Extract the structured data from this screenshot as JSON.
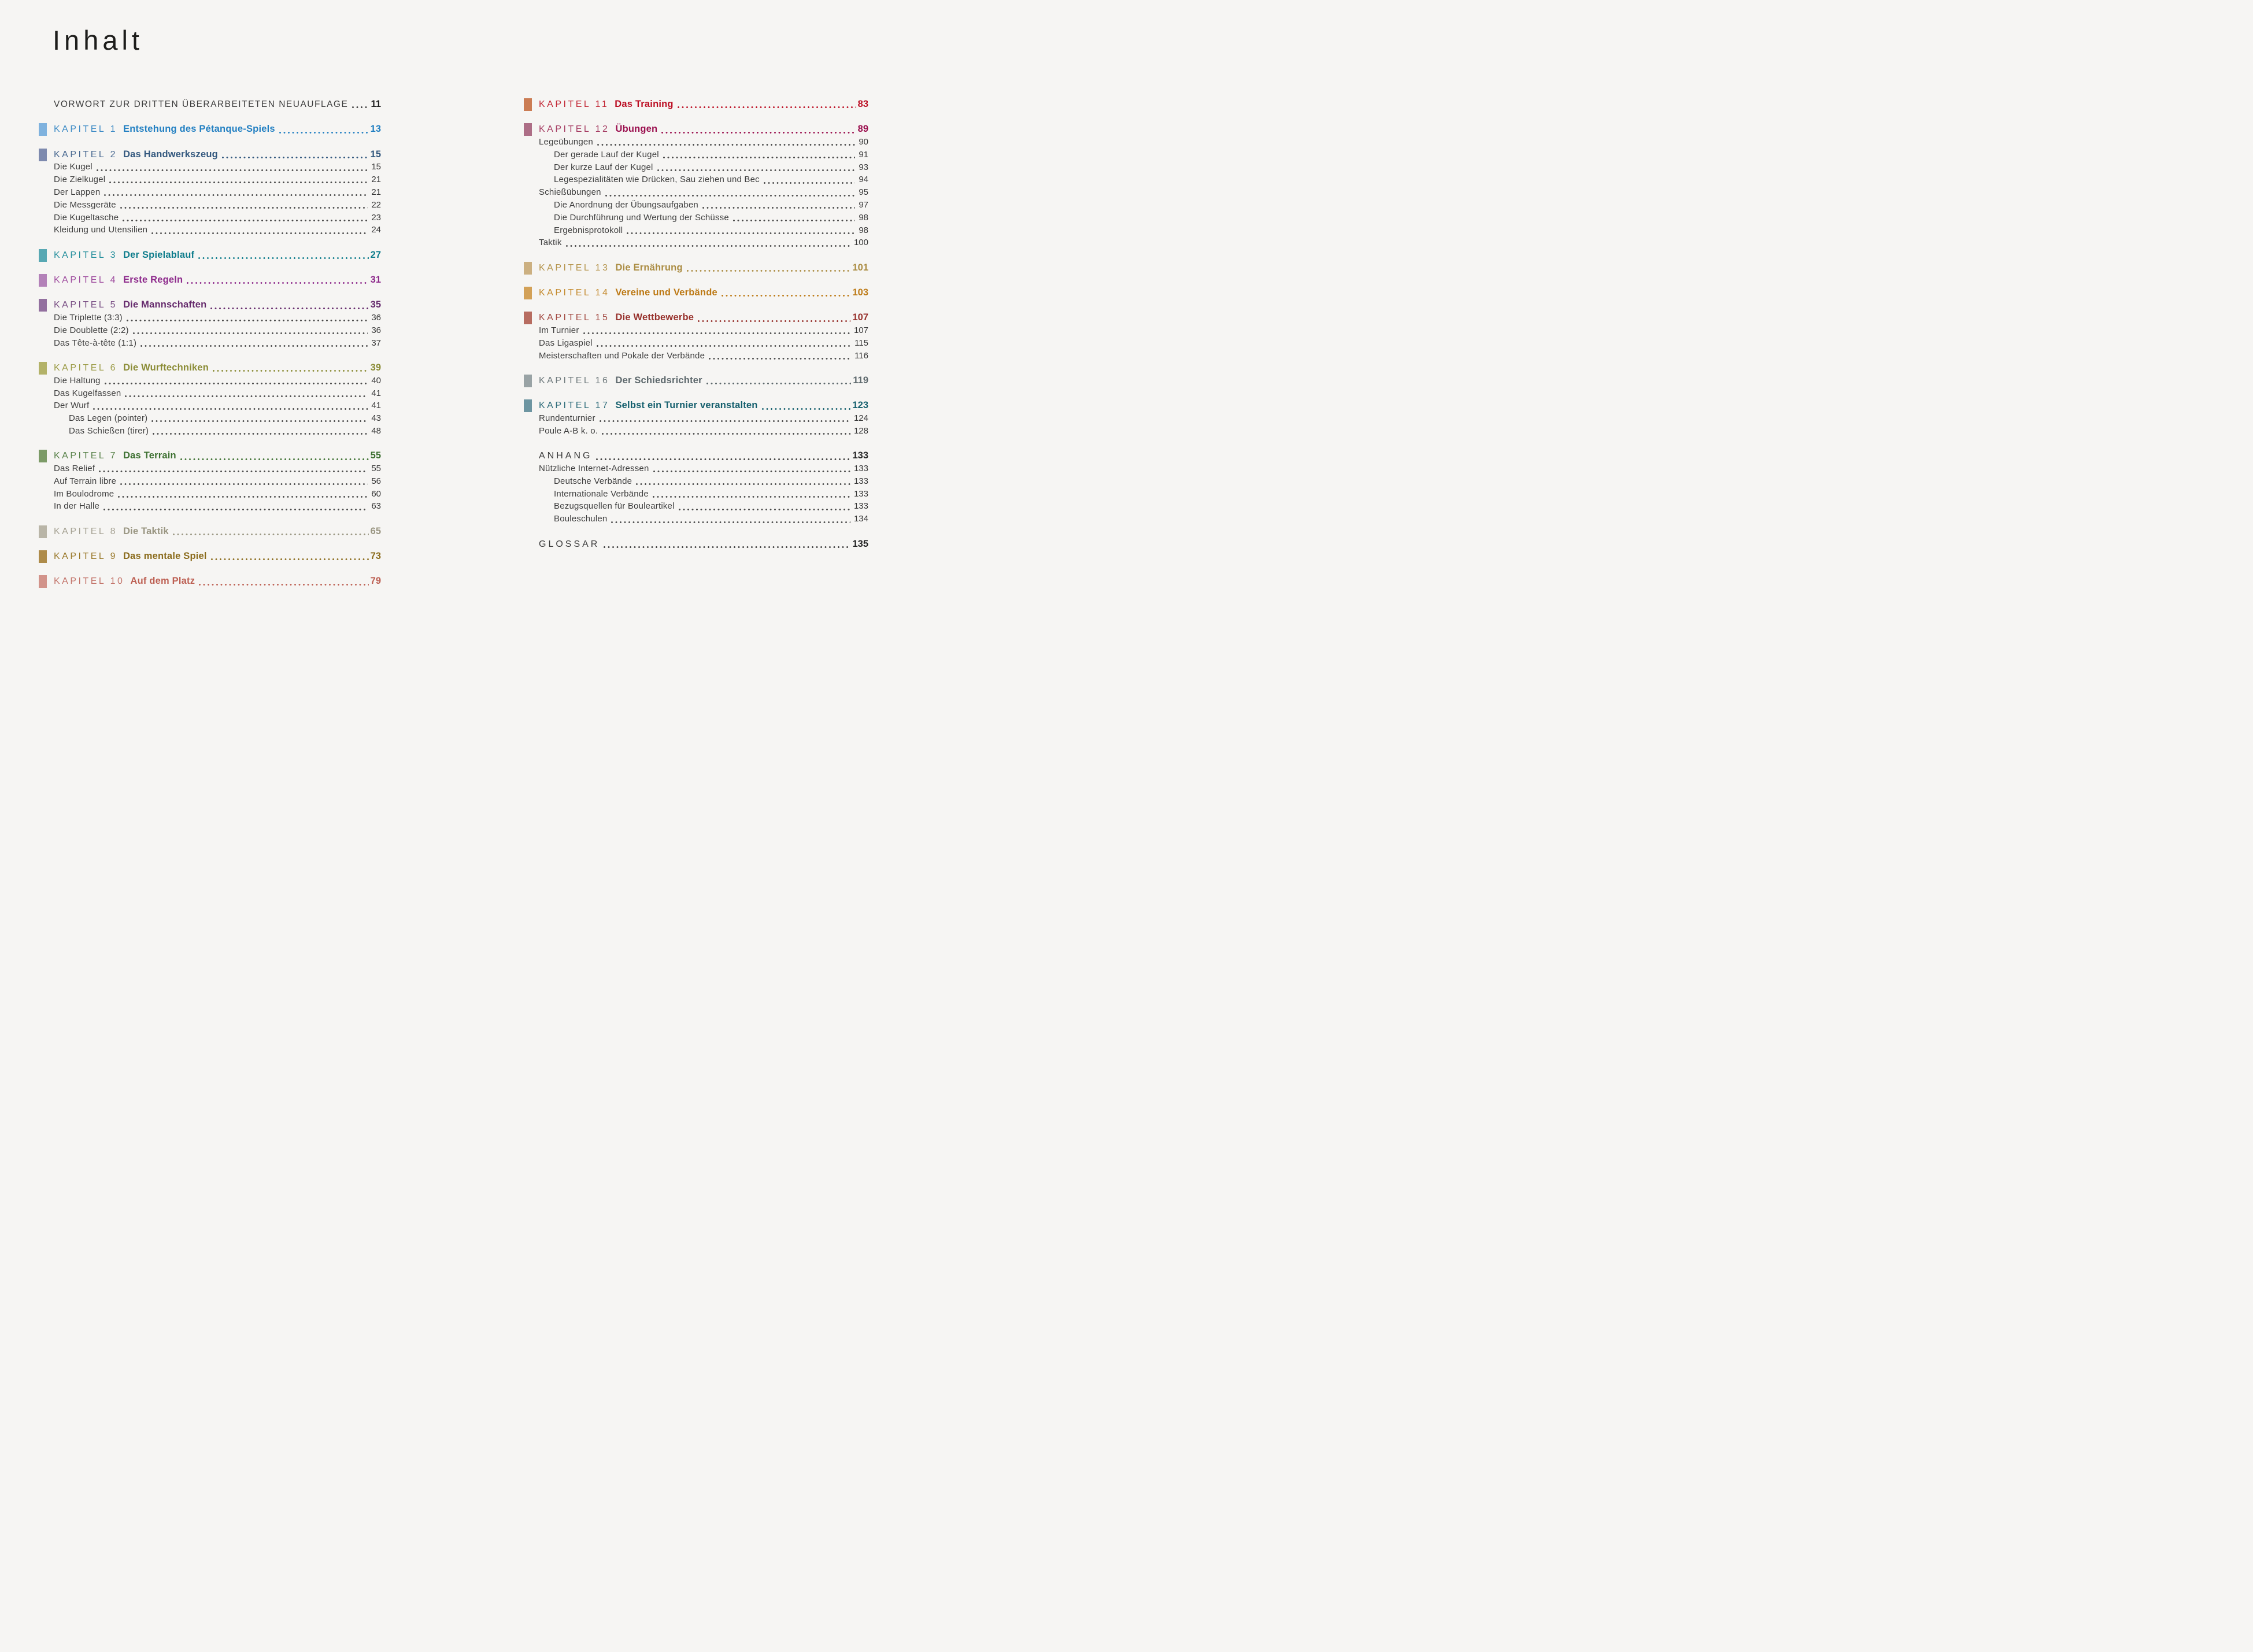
{
  "page": {
    "title": "Inhalt",
    "background": "#f6f5f3"
  },
  "columns": {
    "left": [
      {
        "type": "section",
        "letterspace": "normal",
        "label": "VORWORT ZUR DRITTEN ÜBERARBEITETEN NEUAUFLAGE",
        "page": "11"
      },
      {
        "type": "chapter",
        "label": "KAPITEL 1",
        "title": "Entstehung des Pétanque-Spiels",
        "page": "13",
        "square": "#7FB2DE",
        "label_color": "#3F8CC6",
        "title_color": "#2380C2"
      },
      {
        "type": "chapter",
        "label": "KAPITEL 2",
        "title": "Das Handwerkszeug",
        "page": "15",
        "square": "#7E8AAE",
        "label_color": "#486890",
        "title_color": "#33587E",
        "items": [
          {
            "label": "Die Kugel",
            "page": "15"
          },
          {
            "label": "Die Zielkugel",
            "page": "21"
          },
          {
            "label": "Der Lappen",
            "page": "21"
          },
          {
            "label": "Die Messgeräte",
            "page": "22"
          },
          {
            "label": "Die Kugeltasche",
            "page": "23"
          },
          {
            "label": "Kleidung und Utensilien",
            "page": "24"
          }
        ]
      },
      {
        "type": "chapter",
        "label": "KAPITEL 3",
        "title": "Der Spielablauf",
        "page": "27",
        "square": "#58A8B3",
        "label_color": "#27909D",
        "title_color": "#0F7D8C"
      },
      {
        "type": "chapter",
        "label": "KAPITEL 4",
        "title": "Erste Regeln",
        "page": "31",
        "square": "#B381B8",
        "label_color": "#A04FA0",
        "title_color": "#8E2B8C"
      },
      {
        "type": "chapter",
        "label": "KAPITEL 5",
        "title": "Die Mannschaften",
        "page": "35",
        "square": "#93709F",
        "label_color": "#7A5085",
        "title_color": "#652A6C",
        "items": [
          {
            "label": "Die Triplette (3:3)",
            "page": "36"
          },
          {
            "label": "Die Doublette (2:2)",
            "page": "36"
          },
          {
            "label": "Das Tête-à-tête (1:1)",
            "page": "37"
          }
        ]
      },
      {
        "type": "chapter",
        "label": "KAPITEL 6",
        "title": "Die Wurftechniken",
        "page": "39",
        "square": "#B3B268",
        "label_color": "#9C9C47",
        "title_color": "#8B8C36",
        "items": [
          {
            "label": "Die Haltung",
            "page": "40"
          },
          {
            "label": "Das Kugelfassen",
            "page": "41"
          },
          {
            "label": "Der Wurf",
            "page": "41"
          },
          {
            "label": "Das Legen (pointer)",
            "page": "43",
            "indent": 2
          },
          {
            "label": "Das Schießen (tirer)",
            "page": "48",
            "indent": 2
          }
        ]
      },
      {
        "type": "chapter",
        "label": "KAPITEL 7",
        "title": "Das Terrain",
        "page": "55",
        "square": "#7C9B67",
        "label_color": "#59824A",
        "title_color": "#3D7031",
        "items": [
          {
            "label": "Das Relief",
            "page": "55"
          },
          {
            "label": "Auf Terrain libre",
            "page": "56"
          },
          {
            "label": "Im Boulodrome",
            "page": "60"
          },
          {
            "label": "In der Halle",
            "page": "63"
          }
        ]
      },
      {
        "type": "chapter",
        "label": "KAPITEL 8",
        "title": "Die Taktik",
        "page": "65",
        "square": "#B9B5A7",
        "label_color": "#A5A192",
        "title_color": "#9A9682"
      },
      {
        "type": "chapter",
        "label": "KAPITEL 9",
        "title": "Das mentale Spiel",
        "page": "73",
        "square": "#AE8B49",
        "label_color": "#997829",
        "title_color": "#8B6C1D"
      },
      {
        "type": "chapter",
        "label": "KAPITEL 10",
        "title": "Auf dem Platz",
        "page": "79",
        "square": "#D2938A",
        "label_color": "#C3746A",
        "title_color": "#BD6053"
      }
    ],
    "right": [
      {
        "type": "chapter",
        "label": "KAPITEL 11",
        "title": "Das Training",
        "page": "83",
        "square": "#CB7C53",
        "label_color": "#C22634",
        "title_color": "#BC0E23"
      },
      {
        "type": "chapter",
        "label": "KAPITEL 12",
        "title": "Übungen",
        "page": "89",
        "square": "#AD6E86",
        "label_color": "#A63E64",
        "title_color": "#9B104F",
        "items": [
          {
            "label": "Legeübungen",
            "page": "90"
          },
          {
            "label": "Der gerade Lauf der Kugel",
            "page": "91",
            "indent": 2
          },
          {
            "label": "Der kurze Lauf der Kugel",
            "page": "93",
            "indent": 2
          },
          {
            "label": "Legespezialitäten wie Drücken, Sau ziehen und Bec",
            "page": "94",
            "indent": 2
          },
          {
            "label": "Schießübungen",
            "page": "95"
          },
          {
            "label": "Die Anordnung der Übungsaufgaben",
            "page": "97",
            "indent": 2
          },
          {
            "label": "Die Durchführung und Wertung der Schüsse",
            "page": "98",
            "indent": 2
          },
          {
            "label": "Ergebnisprotokoll",
            "page": "98",
            "indent": 2
          },
          {
            "label": "Taktik",
            "page": "100"
          }
        ]
      },
      {
        "type": "chapter",
        "label": "KAPITEL 13",
        "title": "Die Ernährung",
        "page": "101",
        "square": "#CCB081",
        "label_color": "#B5944C",
        "title_color": "#AB8C42"
      },
      {
        "type": "chapter",
        "label": "KAPITEL 14",
        "title": "Vereine und Verbände",
        "page": "103",
        "square": "#D3A157",
        "label_color": "#C48A2D",
        "title_color": "#BD7A16"
      },
      {
        "type": "chapter",
        "label": "KAPITEL 15",
        "title": "Die Wettbewerbe",
        "page": "107",
        "square": "#B76C60",
        "label_color": "#A24941",
        "title_color": "#97312C",
        "items": [
          {
            "label": "Im Turnier",
            "page": "107"
          },
          {
            "label": "Das Ligaspiel",
            "page": "115"
          },
          {
            "label": "Meisterschaften und Pokale der Verbände",
            "page": "116"
          }
        ]
      },
      {
        "type": "chapter",
        "label": "KAPITEL 16",
        "title": "Der Schiedsrichter",
        "page": "119",
        "square": "#99A3A5",
        "label_color": "#6E797C",
        "title_color": "#5D686C"
      },
      {
        "type": "chapter",
        "label": "KAPITEL 17",
        "title": "Selbst ein Turnier veranstalten",
        "page": "123",
        "square": "#6D95A1",
        "label_color": "#2E6C7A",
        "title_color": "#16606E",
        "items": [
          {
            "label": "Rundenturnier",
            "page": "124"
          },
          {
            "label": "Poule A-B k. o.",
            "page": "128"
          }
        ]
      },
      {
        "type": "section",
        "letterspace": "wide",
        "label": "ANHANG",
        "page": "133",
        "items": [
          {
            "label": "Nützliche Internet-Adressen",
            "page": "133"
          },
          {
            "label": "Deutsche Verbände",
            "page": "133",
            "indent": 2
          },
          {
            "label": "Internationale Verbände",
            "page": "133",
            "indent": 2
          },
          {
            "label": "Bezugsquellen für Bouleartikel",
            "page": "133",
            "indent": 2
          },
          {
            "label": "Bouleschulen",
            "page": "134",
            "indent": 2
          }
        ]
      },
      {
        "type": "section",
        "letterspace": "wide",
        "label": "GLOSSAR",
        "page": "135"
      }
    ]
  }
}
